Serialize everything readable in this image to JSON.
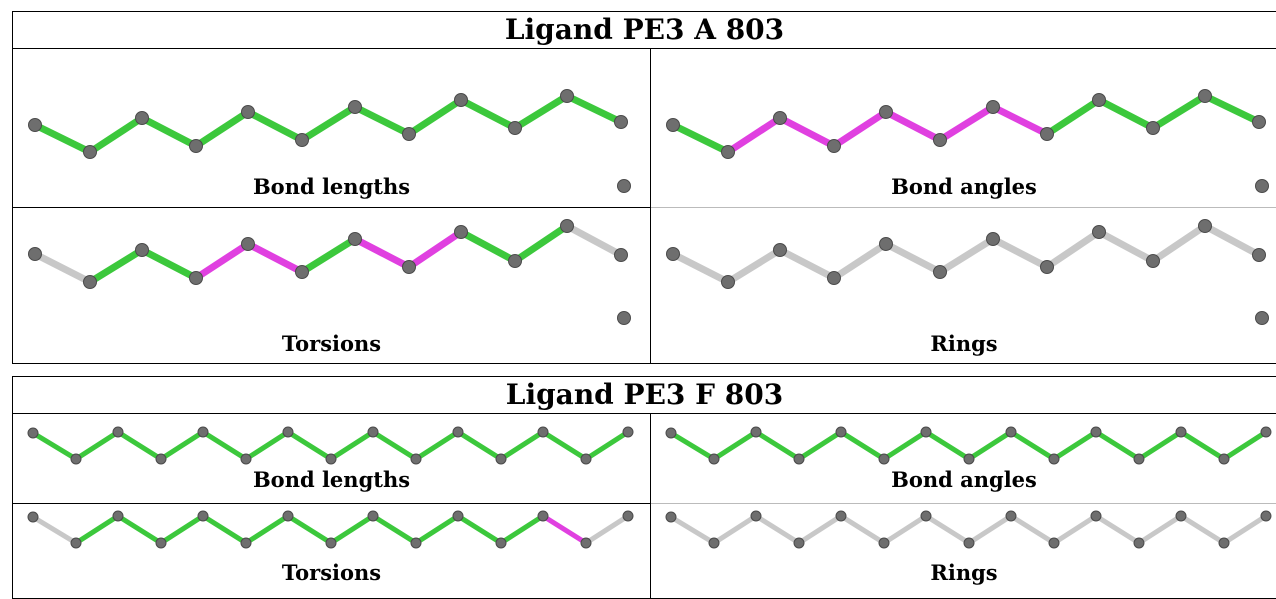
{
  "ligands": [
    {
      "title": "Ligand PE3 A 803",
      "panels": [
        {
          "caption": "Bond lengths",
          "bond_colors": [
            "green",
            "green",
            "green",
            "green",
            "green",
            "green",
            "green",
            "green",
            "green",
            "green",
            "green"
          ]
        },
        {
          "caption": "Bond angles",
          "bond_colors": [
            "green",
            "magenta",
            "magenta",
            "magenta",
            "magenta",
            "magenta",
            "magenta",
            "green",
            "green",
            "green",
            "green"
          ]
        },
        {
          "caption": "Torsions",
          "bond_colors": [
            "gray",
            "green",
            "green",
            "magenta",
            "magenta",
            "green",
            "magenta",
            "magenta",
            "green",
            "green",
            "gray"
          ]
        },
        {
          "caption": "Rings",
          "bond_colors": [
            "gray",
            "gray",
            "gray",
            "gray",
            "gray",
            "gray",
            "gray",
            "gray",
            "gray",
            "gray",
            "gray"
          ]
        }
      ]
    },
    {
      "title": "Ligand PE3 F 803",
      "panels": [
        {
          "caption": "Bond lengths",
          "bond_colors": [
            "green",
            "green",
            "green",
            "green",
            "green",
            "green",
            "green",
            "green",
            "green",
            "green",
            "green",
            "green",
            "green",
            "green"
          ]
        },
        {
          "caption": "Bond angles",
          "bond_colors": [
            "green",
            "green",
            "green",
            "green",
            "green",
            "green",
            "green",
            "green",
            "green",
            "green",
            "green",
            "green",
            "green",
            "green"
          ]
        },
        {
          "caption": "Torsions",
          "bond_colors": [
            "gray",
            "green",
            "green",
            "green",
            "green",
            "green",
            "green",
            "green",
            "green",
            "green",
            "green",
            "green",
            "magenta",
            "gray"
          ]
        },
        {
          "caption": "Rings",
          "bond_colors": [
            "gray",
            "gray",
            "gray",
            "gray",
            "gray",
            "gray",
            "gray",
            "gray",
            "gray",
            "gray",
            "gray",
            "gray",
            "gray",
            "gray"
          ]
        }
      ]
    }
  ],
  "colors": {
    "green": "#3cc83c",
    "magenta": "#e040e0",
    "gray": "#c8c8c8",
    "atom": "#6e6e6e",
    "border": "#000000"
  }
}
